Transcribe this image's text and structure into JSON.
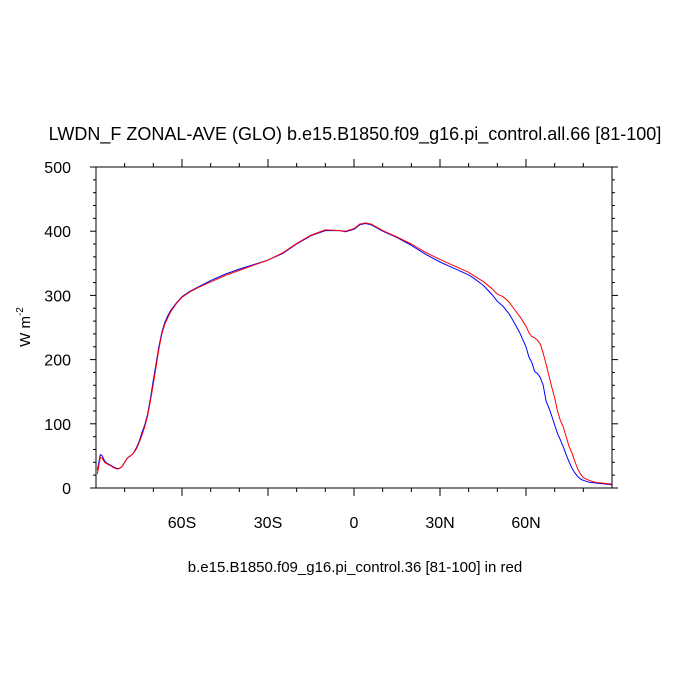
{
  "chart_data": {
    "type": "line",
    "title": "LWDN_F ZONAL-AVE (GLO) b.e15.B1850.f09_g16.pi_control.all.66 [81-100]",
    "ylabel": "W m",
    "ylabel_exponent": "-2",
    "caption": "b.e15.B1850.f09_g16.pi_control.36 [81-100] in red",
    "xlim": [
      -90,
      90
    ],
    "ylim": [
      0,
      500
    ],
    "x_ticks": [
      {
        "value": -60,
        "label": "60S"
      },
      {
        "value": -30,
        "label": "30S"
      },
      {
        "value": 0,
        "label": "0"
      },
      {
        "value": 30,
        "label": "30N"
      },
      {
        "value": 60,
        "label": "60N"
      }
    ],
    "y_ticks": [
      0,
      100,
      200,
      300,
      400,
      500
    ],
    "grid": false,
    "colors": {
      "series_a": "#0000ff",
      "series_b": "#ff0000",
      "axis": "#000000"
    },
    "series": [
      {
        "color": "#0000ff",
        "x": [
          -89.5,
          -88.5,
          -87.8,
          -87,
          -86,
          -85,
          -84,
          -83,
          -82,
          -81,
          -80,
          -79,
          -78,
          -77,
          -76,
          -75,
          -74,
          -73,
          -72,
          -71,
          -70,
          -69,
          -68,
          -67,
          -66,
          -65,
          -64,
          -62,
          -60,
          -57,
          -54,
          -50,
          -45,
          -40,
          -35,
          -30,
          -25,
          -20,
          -15,
          -10,
          -5,
          -3,
          0,
          2,
          4,
          6,
          8,
          10,
          15,
          20,
          25,
          30,
          35,
          40,
          42,
          45,
          48,
          50,
          52,
          54,
          56,
          58,
          60,
          61,
          62,
          63,
          64,
          65,
          66,
          67,
          68,
          69,
          70,
          71,
          72,
          73,
          74,
          75,
          76,
          77,
          78,
          79,
          80,
          82,
          84,
          86,
          88,
          90
        ],
        "y": [
          28,
          52,
          50,
          42,
          38,
          36,
          33,
          31,
          30,
          33,
          40,
          47,
          50,
          54,
          62,
          72,
          86,
          98,
          115,
          140,
          168,
          195,
          222,
          243,
          258,
          268,
          276,
          288,
          298,
          307,
          314,
          323,
          333,
          341,
          348,
          355,
          365,
          380,
          393,
          401,
          401,
          399,
          403,
          410,
          412,
          410,
          405,
          400,
          390,
          378,
          364,
          352,
          342,
          332,
          326,
          316,
          302,
          291,
          283,
          272,
          257,
          240,
          220,
          204,
          196,
          182,
          178,
          172,
          160,
          135,
          125,
          112,
          98,
          85,
          75,
          64,
          52,
          41,
          31,
          24,
          18,
          14,
          12,
          9,
          8,
          7,
          6,
          5
        ]
      },
      {
        "color": "#ff0000",
        "x": [
          -89.5,
          -88.5,
          -87.8,
          -87,
          -86,
          -85,
          -84,
          -83,
          -82,
          -81,
          -80,
          -79,
          -78,
          -77,
          -76,
          -75,
          -74,
          -73,
          -72,
          -71,
          -70,
          -69,
          -68,
          -67,
          -66,
          -65,
          -64,
          -62,
          -60,
          -57,
          -54,
          -50,
          -45,
          -40,
          -35,
          -30,
          -25,
          -20,
          -15,
          -10,
          -5,
          -3,
          0,
          2,
          4,
          6,
          8,
          10,
          15,
          20,
          25,
          30,
          35,
          40,
          42,
          45,
          48,
          50,
          52,
          54,
          56,
          58,
          60,
          61,
          62,
          63,
          64,
          65,
          66,
          67,
          68,
          69,
          70,
          71,
          72,
          73,
          74,
          75,
          76,
          77,
          78,
          79,
          80,
          82,
          84,
          86,
          88,
          90
        ],
        "y": [
          22,
          48,
          46,
          40,
          37,
          35,
          32,
          30,
          30,
          33,
          40,
          47,
          50,
          54,
          60,
          70,
          82,
          95,
          112,
          136,
          162,
          190,
          218,
          240,
          255,
          265,
          274,
          287,
          297,
          306,
          313,
          321,
          331,
          339,
          347,
          355,
          366,
          381,
          394,
          402,
          401,
          400,
          404,
          411,
          413,
          411,
          406,
          401,
          391,
          380,
          367,
          356,
          346,
          336,
          330,
          322,
          311,
          302,
          298,
          290,
          278,
          266,
          252,
          242,
          236,
          234,
          230,
          224,
          210,
          193,
          175,
          157,
          140,
          120,
          105,
          95,
          80,
          65,
          55,
          42,
          30,
          22,
          16,
          12,
          9,
          8,
          7,
          6
        ]
      }
    ]
  }
}
